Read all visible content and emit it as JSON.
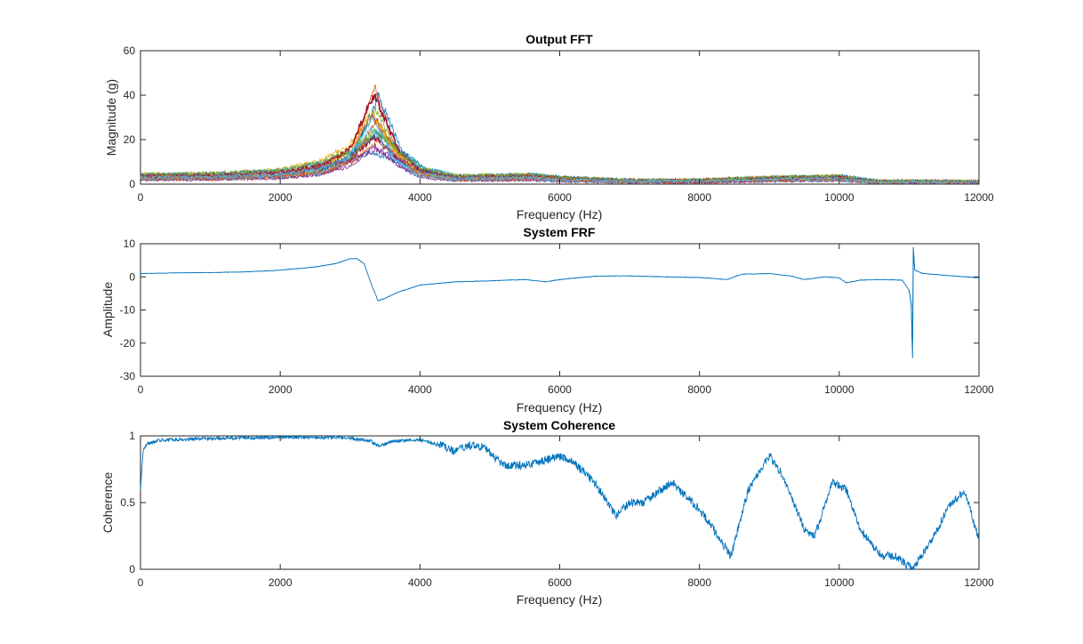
{
  "chart_data": [
    {
      "type": "line",
      "title": "Output FFT",
      "xlabel": "Frequency (Hz)",
      "ylabel": "Magnitude (g)",
      "xlim": [
        0,
        12000
      ],
      "ylim": [
        0,
        60
      ],
      "xticks": [
        "0",
        "2000",
        "4000",
        "6000",
        "8000",
        "10000",
        "12000"
      ],
      "yticks": [
        "0",
        "20",
        "40",
        "60"
      ],
      "grid": false,
      "series_count": 20,
      "peak": {
        "x": 3350,
        "y_range": [
          14,
          47
        ]
      },
      "series_colors": [
        "#0072BD",
        "#D95319",
        "#EDB120",
        "#7E2F8E",
        "#77AC30",
        "#4DBEEE",
        "#A2142F"
      ],
      "baseline": [
        [
          0,
          3.5
        ],
        [
          1000,
          3.8
        ],
        [
          2000,
          5
        ],
        [
          2600,
          8
        ],
        [
          3000,
          15
        ],
        [
          3350,
          40
        ],
        [
          3700,
          15
        ],
        [
          4000,
          6
        ],
        [
          4500,
          3
        ],
        [
          5600,
          3.5
        ],
        [
          6000,
          2.5
        ],
        [
          7000,
          1.5
        ],
        [
          8000,
          1.5
        ],
        [
          9000,
          2.5
        ],
        [
          10000,
          3
        ],
        [
          10500,
          1.2
        ],
        [
          12000,
          1
        ]
      ]
    },
    {
      "type": "line",
      "title": "System FRF",
      "xlabel": "Frequency (Hz)",
      "ylabel": "Amplitude",
      "xlim": [
        0,
        12000
      ],
      "ylim": [
        -30,
        10
      ],
      "xticks": [
        "0",
        "2000",
        "4000",
        "6000",
        "8000",
        "10000",
        "12000"
      ],
      "yticks": [
        "-30",
        "-20",
        "-10",
        "0",
        "10"
      ],
      "grid": false,
      "color": "#0072BD",
      "points": [
        [
          0,
          1
        ],
        [
          500,
          1.2
        ],
        [
          1000,
          1.3
        ],
        [
          1500,
          1.5
        ],
        [
          2000,
          2
        ],
        [
          2500,
          3
        ],
        [
          2800,
          4
        ],
        [
          3000,
          5.5
        ],
        [
          3100,
          5.5
        ],
        [
          3200,
          4
        ],
        [
          3300,
          -2
        ],
        [
          3400,
          -7.2
        ],
        [
          3500,
          -6.5
        ],
        [
          3700,
          -4.5
        ],
        [
          4000,
          -2.5
        ],
        [
          4500,
          -1.5
        ],
        [
          5000,
          -1.2
        ],
        [
          5500,
          -0.8
        ],
        [
          5800,
          -1.5
        ],
        [
          6000,
          -0.8
        ],
        [
          6500,
          0.2
        ],
        [
          7000,
          0.3
        ],
        [
          7500,
          0
        ],
        [
          8000,
          -0.2
        ],
        [
          8400,
          -0.8
        ],
        [
          8600,
          0.8
        ],
        [
          9000,
          1
        ],
        [
          9300,
          0.3
        ],
        [
          9500,
          -0.8
        ],
        [
          9800,
          0
        ],
        [
          10000,
          -0.3
        ],
        [
          10100,
          -1.8
        ],
        [
          10300,
          -1
        ],
        [
          10600,
          -0.8
        ],
        [
          10900,
          -1
        ],
        [
          11000,
          -4
        ],
        [
          11030,
          -8
        ],
        [
          11050,
          -24.5
        ],
        [
          11060,
          9
        ],
        [
          11080,
          2
        ],
        [
          11200,
          1
        ],
        [
          11500,
          0.5
        ],
        [
          12000,
          -0.3
        ]
      ]
    },
    {
      "type": "line",
      "title": "System Coherence",
      "xlabel": "Frequency (Hz)",
      "ylabel": "Coherence",
      "xlim": [
        0,
        12000
      ],
      "ylim": [
        0,
        1
      ],
      "xticks": [
        "0",
        "2000",
        "4000",
        "6000",
        "8000",
        "10000",
        "12000"
      ],
      "yticks": [
        "0",
        "0.5",
        "1"
      ],
      "grid": false,
      "color": "#0072BD",
      "points": [
        [
          0,
          0.6
        ],
        [
          40,
          0.9
        ],
        [
          100,
          0.94
        ],
        [
          300,
          0.97
        ],
        [
          1000,
          0.98
        ],
        [
          2000,
          0.99
        ],
        [
          3000,
          0.985
        ],
        [
          3300,
          0.96
        ],
        [
          3400,
          0.92
        ],
        [
          3600,
          0.96
        ],
        [
          4000,
          0.97
        ],
        [
          4300,
          0.93
        ],
        [
          4500,
          0.88
        ],
        [
          4700,
          0.93
        ],
        [
          4900,
          0.92
        ],
        [
          5200,
          0.78
        ],
        [
          5500,
          0.78
        ],
        [
          5800,
          0.82
        ],
        [
          6000,
          0.85
        ],
        [
          6200,
          0.8
        ],
        [
          6500,
          0.65
        ],
        [
          6800,
          0.4
        ],
        [
          7000,
          0.5
        ],
        [
          7200,
          0.5
        ],
        [
          7600,
          0.65
        ],
        [
          7800,
          0.55
        ],
        [
          8000,
          0.45
        ],
        [
          8200,
          0.3
        ],
        [
          8450,
          0.1
        ],
        [
          8700,
          0.6
        ],
        [
          9000,
          0.85
        ],
        [
          9200,
          0.7
        ],
        [
          9500,
          0.3
        ],
        [
          9650,
          0.25
        ],
        [
          9900,
          0.65
        ],
        [
          10100,
          0.6
        ],
        [
          10300,
          0.3
        ],
        [
          10600,
          0.1
        ],
        [
          10800,
          0.1
        ],
        [
          11050,
          0
        ],
        [
          11300,
          0.2
        ],
        [
          11600,
          0.5
        ],
        [
          11800,
          0.58
        ],
        [
          12000,
          0.22
        ]
      ]
    }
  ]
}
